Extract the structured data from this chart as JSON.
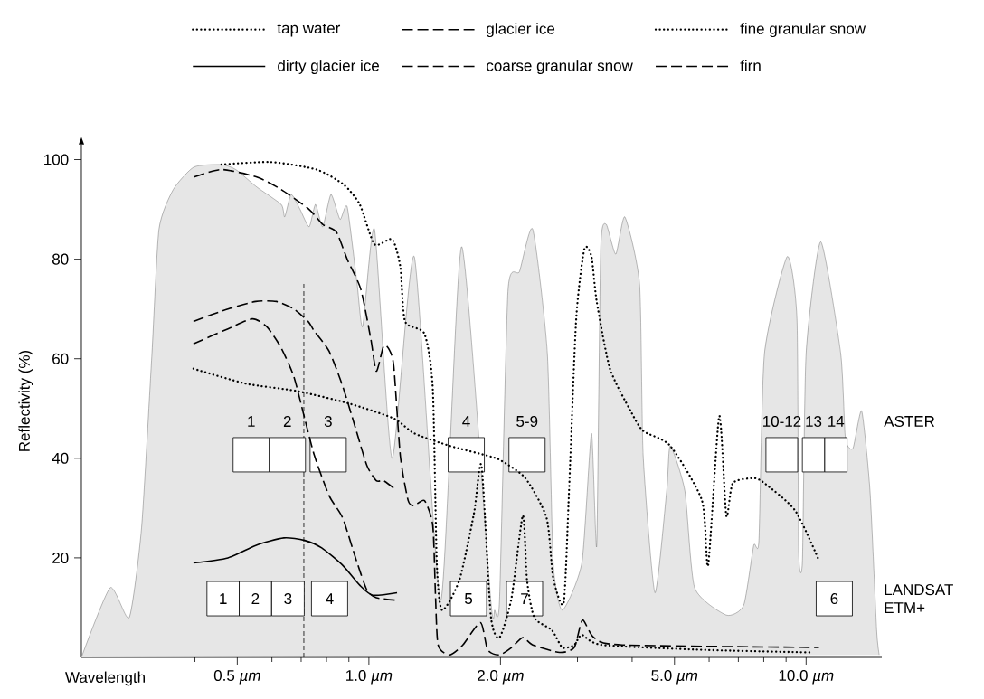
{
  "chart_data": {
    "type": "line",
    "xlabel": "Wavelength",
    "ylabel": "Reflectivity (%)",
    "log": "x",
    "legend": "top",
    "xlim": [
      0.22,
      14.9
    ],
    "ylim": [
      0,
      103
    ],
    "xticks": [
      {
        "value": 0.4,
        "label": null
      },
      {
        "value": 0.5,
        "label": "0.5 *µm*"
      },
      {
        "value": 0.6,
        "label": null
      },
      {
        "value": 0.7,
        "label": null
      },
      {
        "value": 0.8,
        "label": null
      },
      {
        "value": 0.9,
        "label": null
      },
      {
        "value": 1,
        "label": "1.0 *µm*"
      },
      {
        "value": 2,
        "label": "2.0 *µm*"
      },
      {
        "value": 3,
        "label": null
      },
      {
        "value": 4,
        "label": null
      },
      {
        "value": 5,
        "label": "5.0 *µm*"
      },
      {
        "value": 6,
        "label": null
      },
      {
        "value": 7,
        "label": null
      },
      {
        "value": 8,
        "label": null
      },
      {
        "value": 9,
        "label": null
      },
      {
        "value": 10,
        "label": "10.0 *µm*"
      }
    ],
    "yticks": [
      20,
      40,
      60,
      80,
      100
    ],
    "series": [
      {
        "type": "area",
        "color": "#e6e6e6",
        "x": [
          0.22,
          0.256,
          0.283,
          0.302,
          0.319,
          0.331,
          0.357,
          0.398,
          0.46,
          0.496,
          0.554,
          0.63,
          0.642,
          0.664,
          0.696,
          0.73,
          0.755,
          0.784,
          0.819,
          0.859,
          0.892,
          0.94,
          0.968,
          1.03,
          1.13,
          1.27,
          1.46,
          1.63,
          1.9,
          1.94,
          1.99,
          2.08,
          2.21,
          2.37,
          2.56,
          2.64,
          2.77,
          3.07,
          3.23,
          3.32,
          3.39,
          3.49,
          3.67,
          3.85,
          4.16,
          4.24,
          4.51,
          4.8,
          4.89,
          5.28,
          5.56,
          6.57,
          7.2,
          7.59,
          7.8,
          8.03,
          9.05,
          9.53,
          9.62,
          9.81,
          10.0,
          10.8,
          12.0,
          12.3,
          12.8,
          13.4,
          14.0,
          14.5,
          14.7
        ],
        "values": [
          0,
          14,
          8,
          26,
          61,
          86,
          94,
          98.5,
          99,
          98,
          94.5,
          91,
          88.5,
          93,
          90,
          86.5,
          91,
          86.5,
          93,
          88,
          90.5,
          75,
          66.5,
          86,
          40,
          80.5,
          11.5,
          82.5,
          11.5,
          9.5,
          11.5,
          73.5,
          77.5,
          86,
          61,
          19,
          9.5,
          19,
          45,
          22.5,
          82,
          87,
          81,
          88.5,
          75,
          40.5,
          13,
          33.5,
          42.5,
          33.5,
          14,
          8.5,
          10.5,
          22.5,
          23.5,
          61,
          80.5,
          68,
          21,
          19.5,
          61,
          83.5,
          61,
          44,
          42,
          49.5,
          33.5,
          5.5,
          0.5
        ]
      },
      {
        "name": "tap water",
        "color": "#000000",
        "line_style": "dotted",
        "x": [
          0.397,
          0.523,
          0.686,
          0.901,
          1.14,
          1.27,
          1.53,
          1.87,
          2.01,
          2.28,
          2.55,
          2.64,
          2.79,
          2.87,
          2.98,
          3.11,
          3.23,
          3.32,
          3.56,
          3.97,
          4.24,
          4.89,
          5.78,
          5.97,
          6.33,
          6.57,
          6.8,
          7.59,
          8.03,
          9.44,
          10.7
        ],
        "values": [
          58,
          55,
          53.5,
          51,
          48,
          45,
          42.5,
          40.5,
          39.5,
          36,
          28,
          16,
          11,
          33.5,
          68,
          82,
          80.5,
          71.5,
          58,
          49.5,
          45.5,
          42.5,
          31.5,
          18.5,
          48.5,
          28.5,
          35,
          36,
          35,
          29.5,
          19.5
        ]
      },
      {
        "name": "glacier ice",
        "color": "#000000",
        "line_style": "dashed",
        "x": [
          0.397,
          0.476,
          0.541,
          0.583,
          0.627,
          0.673,
          0.713,
          0.751,
          0.811,
          0.871,
          0.936,
          0.99,
          1.04,
          1.15
        ],
        "values": [
          63,
          66,
          68,
          66.5,
          62.5,
          56.5,
          48,
          40.5,
          32.5,
          28,
          19.5,
          13.5,
          12,
          11.5
        ]
      },
      {
        "name": "fine granular snow",
        "color": "#000000",
        "line_style": "dotted",
        "x": [
          0.46,
          0.597,
          0.759,
          0.875,
          0.953,
          1.03,
          1.13,
          1.18,
          1.21,
          1.34,
          1.4,
          1.43,
          1.47,
          1.61,
          1.74,
          1.81,
          1.9,
          1.99,
          2.12,
          2.25,
          2.3,
          2.39,
          2.62,
          2.77,
          2.95,
          3.07,
          3.42,
          5.89,
          10.2
        ],
        "values": [
          99,
          99.5,
          98,
          95,
          91,
          83,
          84,
          78.5,
          67.5,
          65,
          54,
          19,
          9.5,
          15.5,
          29,
          38.5,
          8.5,
          4,
          12,
          28.5,
          15.5,
          8,
          5.5,
          2,
          2.5,
          4.5,
          2.5,
          1.5,
          1
        ]
      },
      {
        "name": "dirty glacier ice",
        "color": "#000000",
        "line_style": "solid",
        "x": [
          0.397,
          0.476,
          0.551,
          0.639,
          0.713,
          0.78,
          0.871,
          0.953,
          1.02,
          1.16
        ],
        "values": [
          19,
          20,
          22.5,
          24,
          23.5,
          22,
          18.5,
          14.5,
          12.5,
          13
        ]
      },
      {
        "name": "coarse granular snow",
        "color": "#000000",
        "line_style": "dashed",
        "x": [
          0.398,
          0.46,
          0.554,
          0.63,
          0.73,
          0.784,
          0.842,
          0.892,
          0.958,
          1.01,
          1.04,
          1.08,
          1.11,
          1.14,
          1.18,
          1.23,
          1.27,
          1.34,
          1.4,
          1.42,
          1.44,
          1.53,
          1.64,
          1.8,
          1.87,
          1.99,
          2.12,
          2.25,
          2.37,
          2.73,
          2.95,
          3.08,
          3.27,
          3.8,
          10.7
        ],
        "values": [
          96.5,
          98,
          96.5,
          94,
          90,
          87,
          85.5,
          80,
          74,
          64,
          57.5,
          62.5,
          62,
          58.5,
          40.5,
          31.5,
          30.5,
          31.5,
          26.5,
          12.5,
          2.5,
          0.5,
          2.5,
          7,
          1.5,
          0.5,
          2,
          4,
          2.5,
          1,
          2,
          7.5,
          4,
          2.5,
          2
        ]
      },
      {
        "name": "firn",
        "color": "#000000",
        "line_style": "dashed",
        "x": [
          0.397,
          0.476,
          0.551,
          0.615,
          0.673,
          0.726,
          0.751,
          0.811,
          0.871,
          0.936,
          0.99,
          1.04,
          1.08,
          1.14
        ],
        "values": [
          67.5,
          70,
          71.5,
          71.5,
          70,
          67.5,
          65.5,
          61.5,
          54.5,
          45.5,
          38.5,
          35.5,
          35.5,
          34
        ]
      }
    ],
    "ref_lines": [
      {
        "axis": "x",
        "value": 0.71
      }
    ],
    "annotations": [
      "ASTER",
      {
        "text": "1",
        "x": 0.538,
        "y": 40.7
      },
      {
        "text": "2",
        "x": 0.651,
        "y": 40.7
      },
      {
        "text": "3",
        "x": 0.807,
        "y": 40.7
      },
      {
        "text": "4",
        "x": 1.67,
        "y": 40.7
      },
      {
        "text": "5-9",
        "x": 2.3,
        "y": 40.7
      },
      {
        "text": "10-12",
        "x": 8.8,
        "y": 40.7
      },
      {
        "text": "13",
        "x": 10.4,
        "y": 40.7
      },
      {
        "text": "14",
        "x": 11.7,
        "y": 40.7
      },
      "LANDSAT ETM+",
      {
        "text": "1",
        "x": 0.464,
        "y": 11.8
      },
      {
        "text": "2",
        "x": 0.55,
        "y": 11.8
      },
      {
        "text": "3",
        "x": 0.653,
        "y": 11.8
      },
      {
        "text": "4",
        "x": 0.813,
        "y": 11.8
      },
      {
        "text": "5",
        "x": 1.69,
        "y": 11.8
      },
      {
        "text": "7",
        "x": 2.27,
        "y": 11.8
      },
      {
        "text": "6",
        "x": 11.6,
        "y": 11.8
      }
    ]
  }
}
